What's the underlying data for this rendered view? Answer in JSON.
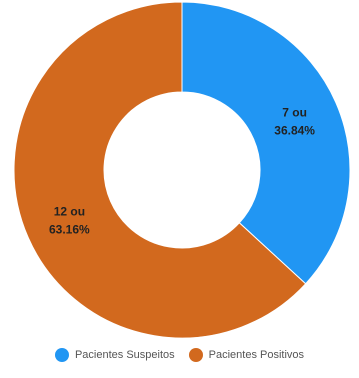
{
  "chart_data": {
    "type": "pie",
    "donut": true,
    "legend_position": "bottom",
    "slices": [
      {
        "name": "Pacientes Suspeitos",
        "value": 7,
        "percent": "36.84%",
        "label_line1": "7 ou",
        "label_line2": "36.84%",
        "color": "#2196f3"
      },
      {
        "name": "Pacientes Positivos",
        "value": 12,
        "percent": "63.16%",
        "label_line1": "12 ou",
        "label_line2": "63.16%",
        "color": "#d2691e"
      }
    ]
  }
}
